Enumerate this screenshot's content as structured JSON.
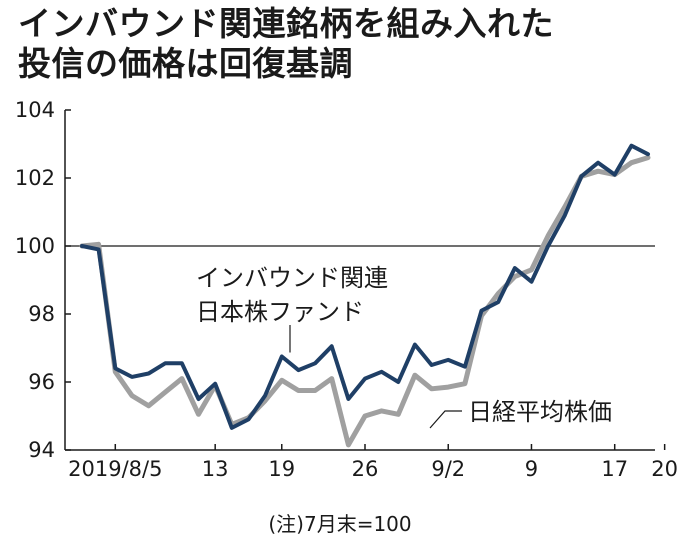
{
  "chart_data": {
    "type": "line",
    "title_lines": [
      "インバウンド関連銘柄を組み入れた",
      "投信の価格は回復基調"
    ],
    "x_ticks": [
      "2019/8/5",
      "13",
      "19",
      "26",
      "9/2",
      "9",
      "17",
      "20"
    ],
    "x_tick_index": [
      2,
      8,
      12,
      17,
      22,
      27,
      32,
      35
    ],
    "ylim": [
      94,
      104
    ],
    "y_ticks": [
      94,
      96,
      98,
      100,
      102,
      104
    ],
    "reference_line": 100,
    "series": [
      {
        "name": "インバウンド関連日本株ファンド",
        "color": "#1f3f66",
        "values": [
          100.0,
          99.9,
          96.4,
          96.15,
          96.25,
          96.55,
          96.55,
          95.5,
          95.95,
          94.65,
          94.9,
          95.6,
          96.75,
          96.35,
          96.55,
          97.05,
          95.5,
          96.1,
          96.3,
          96.0,
          97.1,
          96.5,
          96.65,
          96.45,
          98.1,
          98.35,
          99.35,
          98.95,
          100.0,
          100.9,
          102.05,
          102.45,
          102.1,
          102.95,
          102.7
        ]
      },
      {
        "name": "日経平均株価",
        "color": "#a0a0a0",
        "values": [
          100.0,
          100.05,
          96.3,
          95.6,
          95.3,
          95.7,
          96.1,
          95.05,
          95.9,
          94.75,
          94.95,
          95.45,
          96.05,
          95.75,
          95.75,
          96.1,
          94.15,
          95.0,
          95.15,
          95.05,
          96.2,
          95.8,
          95.85,
          95.95,
          97.95,
          98.6,
          99.1,
          99.3,
          100.3,
          101.15,
          102.05,
          102.2,
          102.1,
          102.45,
          102.6
        ]
      }
    ],
    "annotations": [
      {
        "lines": [
          "インバウンド関連",
          "日本株ファンド"
        ],
        "series": "インバウンド関連日本株ファンド"
      },
      {
        "lines": [
          "日経平均株価"
        ],
        "series": "日経平均株価"
      }
    ],
    "note": "(注)7月末=100",
    "grid": false
  }
}
